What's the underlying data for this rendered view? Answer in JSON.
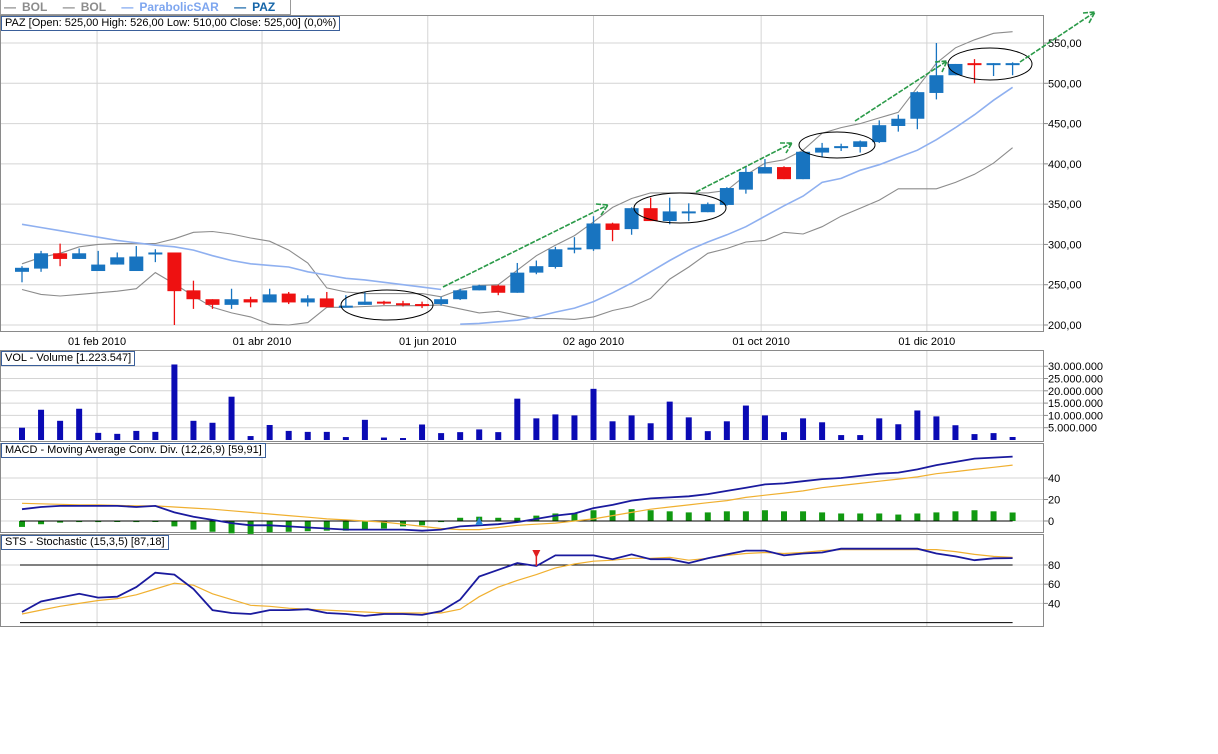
{
  "legend": [
    {
      "label": "BOL",
      "color": "#8c8c8c"
    },
    {
      "label": "BOL",
      "color": "#8c8c8c"
    },
    {
      "label": "ParabolicSAR",
      "color": "#7ea6ef"
    },
    {
      "label": "PAZ",
      "color": "#1565a8"
    }
  ],
  "panels": {
    "price_info": "PAZ [Open: 525,00  High: 526,00  Low: 510,00  Close: 525,00] (0,0%)",
    "volume_info": "VOL - Volume [1.223.547]",
    "macd_info": "MACD - Moving Average Conv. Div. (12,26,9) [59,91]",
    "stoch_info": "STS - Stochastic (15,3,5) [87,18]"
  },
  "colors": {
    "up": "#1874c0",
    "down": "#ee1111",
    "bollinger": "#8c8c8c",
    "sar": "#8fb0f0",
    "volume": "#0a0ab4",
    "macd": "#1a1a9e",
    "signal": "#f0b030",
    "histogram": "#119911",
    "stoch_k": "#1a1a9e",
    "stoch_d": "#f0b030",
    "annotation": "#2a9a48"
  },
  "chart_data": [
    {
      "type": "candlestick",
      "ticker": "PAZ",
      "period": "weekly",
      "x_tick_labels": [
        "01 feb 2010",
        "01 abr 2010",
        "01 jun 2010",
        "02 ago 2010",
        "01 oct 2010",
        "01 dic 2010"
      ],
      "y_tick_labels": [
        "200,00",
        "250,00",
        "300,00",
        "350,00",
        "400,00",
        "450,00",
        "500,00",
        "550,00"
      ],
      "ylim": [
        200,
        550
      ],
      "grid": true,
      "ohlc_fields": [
        "open",
        "high",
        "low",
        "close"
      ],
      "candles": [
        [
          266,
          273,
          253,
          271
        ],
        [
          270,
          292,
          266,
          289
        ],
        [
          289,
          301,
          273,
          282
        ],
        [
          282,
          295,
          282,
          289
        ],
        [
          267,
          292,
          267,
          275
        ],
        [
          275,
          290,
          275,
          284
        ],
        [
          267,
          298,
          267,
          285
        ],
        [
          288,
          294,
          278,
          290
        ],
        [
          290,
          290,
          200,
          242
        ],
        [
          243,
          255,
          220,
          232
        ],
        [
          232,
          232,
          220,
          225
        ],
        [
          225,
          245,
          220,
          232
        ],
        [
          232,
          235,
          222,
          228
        ],
        [
          228,
          245,
          228,
          238
        ],
        [
          239,
          241,
          226,
          228
        ],
        [
          228,
          237,
          223,
          233
        ],
        [
          233,
          241,
          222,
          222
        ],
        [
          222,
          237,
          222,
          224
        ],
        [
          225,
          241,
          225,
          229
        ],
        [
          229,
          230,
          225,
          227
        ],
        [
          227,
          230,
          223,
          225
        ],
        [
          226,
          229,
          221,
          224
        ],
        [
          226,
          235,
          224,
          232
        ],
        [
          232,
          245,
          231,
          243
        ],
        [
          243,
          250,
          243,
          249
        ],
        [
          249,
          250,
          237,
          240
        ],
        [
          240,
          277,
          240,
          265
        ],
        [
          265,
          280,
          263,
          273
        ],
        [
          272,
          297,
          270,
          294
        ],
        [
          294,
          309,
          289,
          296
        ],
        [
          294,
          335,
          292,
          326
        ],
        [
          326,
          327,
          304,
          318
        ],
        [
          319,
          346,
          312,
          345
        ],
        [
          345,
          358,
          329,
          329
        ],
        [
          329,
          358,
          325,
          341
        ],
        [
          339,
          351,
          329,
          341
        ],
        [
          340,
          352,
          340,
          350
        ],
        [
          349,
          371,
          348,
          370
        ],
        [
          368,
          397,
          363,
          390
        ],
        [
          388,
          406,
          388,
          396
        ],
        [
          396,
          397,
          381,
          381
        ],
        [
          381,
          416,
          381,
          415
        ],
        [
          414,
          426,
          408,
          420
        ],
        [
          420,
          425,
          416,
          422
        ],
        [
          421,
          429,
          414,
          428
        ],
        [
          427,
          454,
          426,
          448
        ],
        [
          447,
          461,
          440,
          456
        ],
        [
          456,
          490,
          443,
          489
        ],
        [
          488,
          550,
          480,
          510
        ],
        [
          510,
          524,
          510,
          524
        ],
        [
          525,
          530,
          500,
          523
        ],
        [
          523,
          525,
          509,
          525
        ],
        [
          525,
          526,
          510,
          525
        ]
      ],
      "series": [
        {
          "name": "BOL",
          "values": [
            276,
            284,
            289,
            297,
            300,
            301,
            301,
            301,
            307,
            315,
            316,
            313,
            308,
            304,
            293,
            277,
            246,
            241,
            239,
            239,
            239,
            239,
            235,
            244,
            249,
            250,
            268,
            286,
            299,
            311,
            328,
            346,
            357,
            364,
            364,
            364,
            364,
            367,
            386,
            401,
            405,
            417,
            438,
            445,
            450,
            457,
            464,
            495,
            525,
            544,
            554,
            562,
            564
          ]
        },
        {
          "name": "BOL",
          "values": [
            244,
            238,
            236,
            238,
            240,
            242,
            245,
            265,
            251,
            236,
            222,
            215,
            210,
            201,
            200,
            203,
            222,
            222,
            223,
            224,
            224,
            224,
            225,
            220,
            215,
            217,
            212,
            208,
            208,
            207,
            210,
            218,
            223,
            233,
            257,
            272,
            289,
            295,
            303,
            305,
            315,
            313,
            322,
            335,
            345,
            355,
            369,
            369,
            369,
            377,
            387,
            401,
            420
          ]
        },
        {
          "name": "ParabolicSAR",
          "values": [
            325,
            321,
            317,
            313,
            309,
            305,
            302,
            299,
            297,
            293,
            286,
            280,
            276,
            274,
            272,
            266,
            262,
            258,
            256,
            253,
            250,
            247,
            244,
            201,
            202,
            204,
            206,
            210,
            216,
            221,
            229,
            240,
            252,
            266,
            280,
            293,
            303,
            312,
            322,
            335,
            348,
            360,
            377,
            382,
            392,
            399,
            408,
            417,
            430,
            445,
            461,
            479,
            495
          ]
        }
      ]
    },
    {
      "type": "bar",
      "title": "VOL - Volume",
      "y_tick_labels": [
        "5.000.000",
        "10.000.000",
        "15.000.000",
        "20.000.000",
        "25.000.000",
        "30.000.000"
      ],
      "values": [
        5000000,
        12300000,
        7800000,
        12700000,
        2900000,
        2500000,
        3700000,
        3300000,
        30700000,
        7800000,
        7000000,
        17600000,
        1600000,
        6100000,
        3700000,
        3300000,
        3300000,
        1200000,
        8200000,
        1000000,
        800000,
        6300000,
        2800000,
        3200000,
        4300000,
        3200000,
        16800000,
        8800000,
        10400000,
        10000000,
        20800000,
        7600000,
        10000000,
        6800000,
        15600000,
        9200000,
        3600000,
        7600000,
        14000000,
        10000000,
        3200000,
        8800000,
        7200000,
        2000000,
        2000000,
        8800000,
        6400000,
        12000000,
        9600000,
        6000000,
        2400000,
        2800000,
        1223547
      ]
    },
    {
      "type": "line",
      "title": "MACD - Moving Average Conv. Div. (12,26,9)",
      "y_tick_labels": [
        "0",
        "20",
        "40"
      ],
      "macd": [
        11,
        13,
        14,
        14,
        14,
        14,
        13,
        14,
        8,
        4,
        1,
        -2,
        -4,
        -4,
        -5,
        -6,
        -7,
        -8,
        -8,
        -8,
        -8,
        -9,
        -8,
        -5,
        -4,
        -3,
        -1,
        2,
        5,
        7,
        12,
        15,
        19,
        21,
        22,
        23,
        25,
        28,
        31,
        34,
        35,
        37,
        39,
        40,
        42,
        44,
        45,
        48,
        52,
        55,
        58,
        59,
        59.91
      ],
      "signal": [
        16.5,
        16,
        15.5,
        15,
        15,
        14.5,
        14,
        14,
        13,
        12,
        11,
        9.5,
        8,
        6.5,
        5,
        3.5,
        2,
        1,
        0,
        -1,
        -3,
        -5,
        -7,
        -8,
        -8,
        -6,
        -4,
        -3,
        -2,
        0,
        2,
        5,
        8,
        11,
        13,
        15,
        17,
        19,
        22,
        24,
        26,
        28,
        31,
        33,
        35,
        37,
        39,
        41,
        44,
        46,
        48,
        50,
        52
      ],
      "histogram": [
        -5.5,
        -3,
        -1.5,
        -1,
        -1,
        -0.5,
        -1,
        0,
        -5,
        -8,
        -10,
        -11.5,
        -12,
        -10.5,
        -10,
        -9.5,
        -9,
        -9,
        -8,
        -7,
        -5,
        -4,
        -1,
        3,
        4,
        3,
        3,
        5,
        7,
        7,
        10,
        10,
        11,
        10,
        9,
        8,
        8,
        9,
        9,
        10,
        9,
        9,
        8,
        7,
        7,
        7,
        6,
        7,
        8,
        9,
        10,
        9,
        7.91
      ],
      "buy_signal_index": 24
    },
    {
      "type": "line",
      "title": "STS - Stochastic (15,3,5)",
      "y_tick_labels": [
        "40",
        "60",
        "80"
      ],
      "reference_lines": [
        20,
        80
      ],
      "k": [
        31,
        42,
        46,
        50,
        46,
        47,
        57,
        72,
        70,
        55,
        33,
        30,
        29,
        33,
        33,
        34,
        30,
        29,
        27,
        29,
        29,
        28,
        32,
        44,
        68,
        75,
        82,
        79,
        90,
        90,
        90,
        86,
        91,
        86,
        86,
        82,
        87,
        91,
        95,
        95,
        90,
        92,
        93,
        97,
        97,
        97,
        97,
        97,
        92,
        89,
        85,
        87,
        87.18
      ],
      "d": [
        29,
        33,
        37,
        40,
        43,
        45,
        49,
        55,
        61,
        59,
        50,
        44,
        38,
        37,
        35,
        34,
        33,
        32,
        31,
        30,
        30,
        30,
        30,
        34,
        47,
        57,
        64,
        70,
        77,
        81,
        84,
        85,
        87,
        87,
        88,
        85,
        87,
        90,
        92,
        93,
        92,
        93,
        95,
        96,
        96,
        96,
        96,
        96,
        96,
        94,
        91,
        89,
        88
      ],
      "sell_signal_index": 27
    }
  ]
}
